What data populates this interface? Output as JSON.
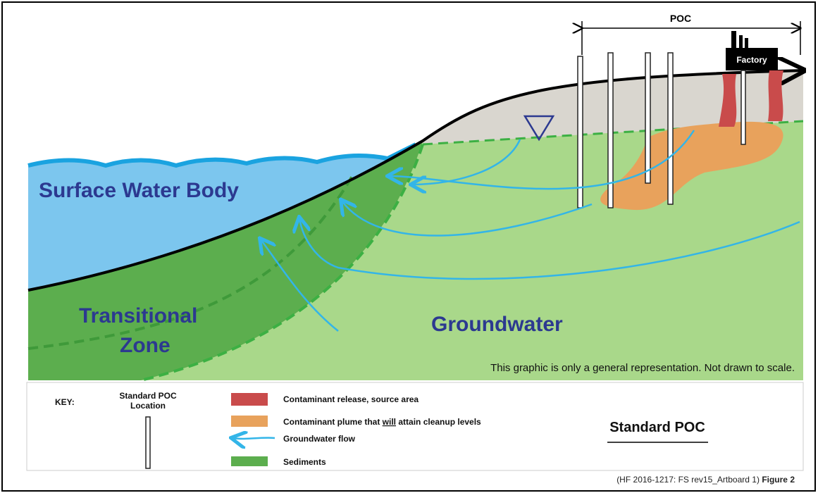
{
  "diagram": {
    "poc_label": "POC",
    "factory_label": "Factory",
    "surface_water_label": "Surface Water Body",
    "transitional_zone_label": [
      "Transitional",
      "Zone"
    ],
    "groundwater_label": "Groundwater",
    "note": "This graphic is only a general representation.  Not drawn to scale."
  },
  "key": {
    "title": "KEY:",
    "well_label": [
      "Standard POC",
      "Location"
    ],
    "source_area": "Contaminant release, source area",
    "plume": [
      "Contaminant plume that ",
      "will",
      " attain cleanup levels"
    ],
    "groundwater_flow": "Groundwater flow",
    "sediments": "Sediments",
    "scenario": "Standard POC"
  },
  "footer": {
    "reference": "(HF 2016-1217: FS rev15_Artboard 1)",
    "figure": "Figure 2"
  }
}
